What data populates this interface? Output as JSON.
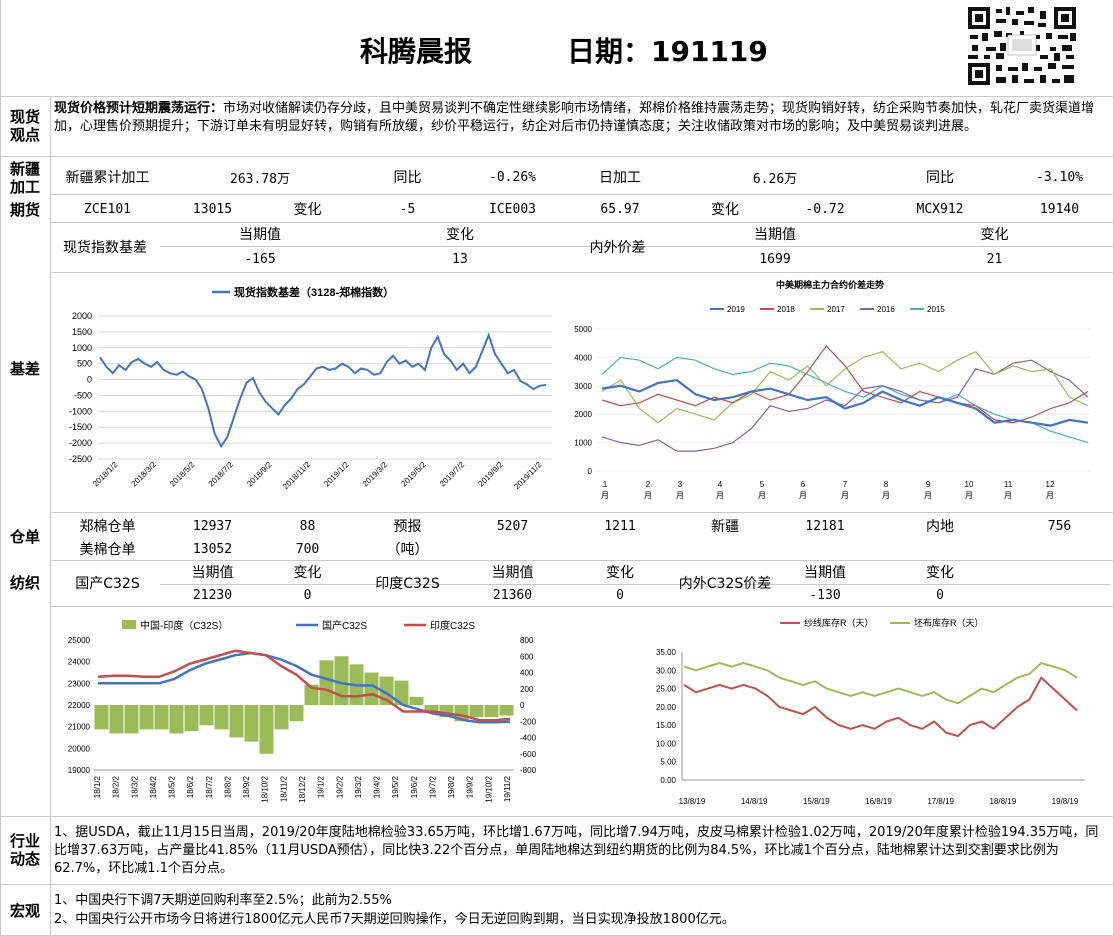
{
  "header": {
    "title": "科腾晨报",
    "date_label": "日期：191119"
  },
  "sections": {
    "spot_view": "现货\n观点",
    "xinjiang": "新疆\n加工",
    "futures": "期货",
    "basis": "基差",
    "warehouse": "仓单",
    "textile": "纺织",
    "industry": "行业\n动态",
    "macro": "宏观"
  },
  "spot_view": {
    "headline": "现货价格预计短期震荡运行：",
    "text": "市场对收储解读仍存分歧，且中美贸易谈判不确定性继续影响市场情绪，郑棉价格维持震荡走势；现货购销好转，纺企采购节奏加快，轧花厂卖货渠道增加，心理售价预期提升；下游订单未有明显好转，购销有所放缓，纱价平稳运行，纺企对后市仍持谨慎态度；关注收储政策对市场的影响；及中美贸易谈判进展。"
  },
  "xinjiang": [
    "新疆累计加工",
    "263.78万",
    "同比",
    "-0.26%",
    "日加工",
    "6.26万",
    "同比",
    "-3.10%"
  ],
  "futures": [
    "ZCE101",
    "13015",
    "变化",
    "-5",
    "ICE003",
    "65.97",
    "变化",
    "-0.72",
    "MCX912",
    "19140"
  ],
  "basis_table": {
    "spot_label": "现货指数基差",
    "intl_label": "内外价差",
    "h_cur": "当期值",
    "h_chg": "变化",
    "spot_cur": "-165",
    "spot_chg": "13",
    "intl_cur": "1699",
    "intl_chg": "21"
  },
  "warehouse": {
    "zce_label": "郑棉仓单",
    "zce_val": "12937",
    "zce_chg": "88",
    "us_label": "美棉仓单",
    "us_val": "13052",
    "us_chg": "700",
    "forecast_label": "预报",
    "unit_label": "（吨）",
    "forecast_val": "5207",
    "forecast_chg": "1211",
    "xj_label": "新疆",
    "xj_val": "12181",
    "inland_label": "内地",
    "inland_val": "756"
  },
  "textile": {
    "cn_label": "国产C32S",
    "in_label": "印度C32S",
    "diff_label": "内外C32S价差",
    "h_cur": "当期值",
    "h_chg": "变化",
    "cn_cur": "21230",
    "cn_chg": "0",
    "in_cur": "21360",
    "in_chg": "0",
    "diff_cur": "-130",
    "diff_chg": "0"
  },
  "industry": {
    "text": "1、据USDA，截止11月15日当周，2019/20年度陆地棉检验33.65万吨，环比增1.67万吨，同比增7.94万吨，皮皮马棉累计检验1.02万吨，2019/20年度累计检验194.35万吨，同比增37.63万吨，占产量比41.85%（11月USDA预估），同比快3.22个百分点，单周陆地棉达到纽约期货的比例为84.5%，环比减1个百分点，陆地棉累计达到交割要求比例为62.7%，环比减1.1个百分点。"
  },
  "macro": {
    "line1": "1、中国央行下调7天期逆回购利率至2.5%；此前为2.55%",
    "line2": "2、中国央行公开市场今日将进行1800亿元人民币7天期逆回购操作，今日无逆回购到期，当日实现净投放1800亿元。"
  },
  "chart_data": [
    {
      "type": "line",
      "title": "",
      "legend": [
        "现货指数基差（3128-郑棉指数）"
      ],
      "ylim": [
        -2500,
        2000
      ],
      "yticks": [
        "2000",
        "1500",
        "1000",
        "500",
        "0",
        "-500",
        "-1000",
        "-1500",
        "-2000",
        "-2500"
      ],
      "xticks": [
        "2018/1/2",
        "2018/3/2",
        "2018/5/2",
        "2018/7/2",
        "2018/9/2",
        "2018/11/2",
        "2019/1/2",
        "2019/3/2",
        "2019/5/2",
        "2019/7/2",
        "2019/9/2",
        "2019/11/2"
      ],
      "series": [
        {
          "name": "现货指数基差（3128-郑棉指数）",
          "color": "#4472c4",
          "values": [
            700,
            400,
            200,
            450,
            300,
            550,
            650,
            500,
            400,
            550,
            300,
            200,
            150,
            250,
            100,
            0,
            -300,
            -900,
            -1700,
            -2100,
            -1800,
            -1200,
            -600,
            -100,
            50,
            -400,
            -700,
            -900,
            -1100,
            -800,
            -600,
            -300,
            -150,
            100,
            350,
            400,
            300,
            350,
            500,
            400,
            200,
            350,
            300,
            150,
            200,
            550,
            750,
            500,
            600,
            400,
            500,
            300,
            1000,
            1350,
            800,
            600,
            300,
            500,
            200,
            400,
            900,
            1400,
            800,
            500,
            200,
            300,
            -50,
            -150,
            -300,
            -200,
            -165
          ]
        }
      ]
    },
    {
      "type": "line",
      "title": "中美期棉主力合约价差走势",
      "ylim": [
        0,
        5000
      ],
      "yticks": [
        "5000",
        "4000",
        "3000",
        "2000",
        "1000",
        "0"
      ],
      "xticks": [
        "1\n月",
        "2\n月",
        "3\n月",
        "4\n月",
        "5\n月",
        "6\n月",
        "7\n月",
        "8\n月",
        "9\n月",
        "10\n月",
        "11\n月",
        "12\n月"
      ],
      "series": [
        {
          "name": "2019",
          "color": "#4472c4",
          "values": [
            2900,
            3000,
            2800,
            3100,
            3200,
            2700,
            2500,
            2600,
            2800,
            2900,
            2700,
            2500,
            2600,
            2200,
            2400,
            2800,
            2500,
            2300,
            2600,
            2400,
            2200,
            1700,
            1800,
            1700,
            1600,
            1800,
            1700
          ]
        },
        {
          "name": "2018",
          "color": "#c0504d",
          "values": [
            2500,
            2300,
            2400,
            2700,
            2500,
            2300,
            2600,
            2400,
            2800,
            2500,
            2700,
            3500,
            4400,
            3700,
            2800,
            2600,
            2400,
            2800,
            2600,
            2400,
            2300,
            1800,
            1700,
            1900,
            2200,
            2400,
            2800
          ]
        },
        {
          "name": "2017",
          "color": "#9bbb59",
          "values": [
            2800,
            3200,
            2200,
            1700,
            2200,
            2000,
            1800,
            2400,
            2700,
            3500,
            3200,
            3700,
            3000,
            3600,
            4000,
            4200,
            3600,
            3800,
            3500,
            3900,
            4200,
            3400,
            3700,
            3500,
            3600,
            2600,
            2300
          ]
        },
        {
          "name": "2016",
          "color": "#8064a2",
          "values": [
            1200,
            1000,
            900,
            1100,
            700,
            700,
            800,
            1000,
            1500,
            2300,
            2100,
            2200,
            2500,
            2300,
            2900,
            3000,
            2800,
            2500,
            2400,
            2600,
            3600,
            3400,
            3800,
            3900,
            3500,
            3200,
            2600
          ]
        },
        {
          "name": "2015",
          "color": "#4bacc6",
          "values": [
            3400,
            4000,
            3900,
            3600,
            4000,
            3900,
            3600,
            3400,
            3500,
            3800,
            3700,
            3400,
            3100,
            2800,
            2600,
            3000,
            2700,
            2500,
            2400,
            2700,
            2300,
            2000,
            1800,
            1700,
            1400,
            1200,
            1000
          ]
        }
      ]
    },
    {
      "type": "bar+line",
      "title": "",
      "legend": [
        "中国-印度（C32S）",
        "国产C32S",
        "印度C32S"
      ],
      "ylim_left": [
        19000,
        25000
      ],
      "ylim_right": [
        -800,
        800
      ],
      "yticks_left": [
        "25000",
        "24000",
        "23000",
        "22000",
        "21000",
        "20000",
        "19000"
      ],
      "yticks_right": [
        "800",
        "600",
        "400",
        "200",
        "0",
        "-200",
        "-400",
        "-600",
        "-800"
      ],
      "xticks": [
        "18/1/2",
        "18/2/2",
        "18/3/2",
        "18/4/2",
        "18/5/2",
        "18/6/2",
        "18/7/2",
        "18/8/2",
        "18/9/2",
        "18/10/2",
        "18/11/2",
        "18/12/2",
        "19/1/2",
        "19/2/2",
        "19/3/2",
        "19/4/2",
        "19/5/2",
        "19/6/2",
        "19/7/2",
        "19/8/2",
        "19/9/2",
        "19/10/2",
        "19/11/2"
      ],
      "series": [
        {
          "name": "中国-印度（C32S）",
          "color": "#9bbb59",
          "values": [
            -300,
            -350,
            -350,
            -300,
            -300,
            -350,
            -320,
            -250,
            -300,
            -400,
            -450,
            -600,
            -300,
            -200,
            250,
            550,
            600,
            500,
            400,
            350,
            300,
            100,
            -100,
            -150,
            -200,
            -150,
            -150,
            -130
          ]
        },
        {
          "name": "国产C32S",
          "color": "#4472c4",
          "values": [
            23000,
            23000,
            23000,
            23000,
            23000,
            23200,
            23600,
            23900,
            24100,
            24300,
            24400,
            24300,
            24100,
            23800,
            23400,
            23200,
            23000,
            22900,
            22900,
            22500,
            22000,
            21800,
            21600,
            21500,
            21300,
            21200,
            21200,
            21230
          ]
        },
        {
          "name": "印度C32S",
          "color": "#c0504d",
          "values": [
            23300,
            23350,
            23350,
            23300,
            23300,
            23550,
            23900,
            24100,
            24300,
            24500,
            24400,
            24300,
            23800,
            23400,
            22800,
            22700,
            22400,
            22400,
            22500,
            22200,
            21700,
            21700,
            21700,
            21600,
            21500,
            21300,
            21300,
            21360
          ]
        }
      ]
    },
    {
      "type": "line",
      "title": "",
      "legend": [
        "纱线库存R（天）",
        "坯布库存R（天）"
      ],
      "ylim": [
        0,
        35
      ],
      "yticks": [
        "35.00",
        "30.00",
        "25.00",
        "20.00",
        "15.00",
        "10.00",
        "5.00",
        "0.00"
      ],
      "xticks": [
        "13/8/19",
        "14/8/19",
        "15/8/19",
        "16/8/19",
        "17/8/19",
        "18/8/19",
        "19/8/19"
      ],
      "series": [
        {
          "name": "纱线库存R（天）",
          "color": "#c0504d",
          "values": [
            26,
            24,
            25,
            26,
            25,
            26,
            25,
            23,
            20,
            19,
            18,
            20,
            17,
            15,
            14,
            15,
            14,
            16,
            17,
            15,
            14,
            16,
            13,
            12,
            15,
            16,
            14,
            17,
            20,
            22,
            28,
            25,
            22,
            19
          ]
        },
        {
          "name": "坯布库存R（天）",
          "color": "#9bbb59",
          "values": [
            31,
            30,
            31,
            32,
            31,
            32,
            31,
            30,
            28,
            27,
            26,
            27,
            25,
            24,
            23,
            24,
            23,
            24,
            25,
            24,
            23,
            24,
            22,
            21,
            23,
            25,
            24,
            26,
            28,
            29,
            32,
            31,
            30,
            28
          ]
        }
      ]
    }
  ]
}
